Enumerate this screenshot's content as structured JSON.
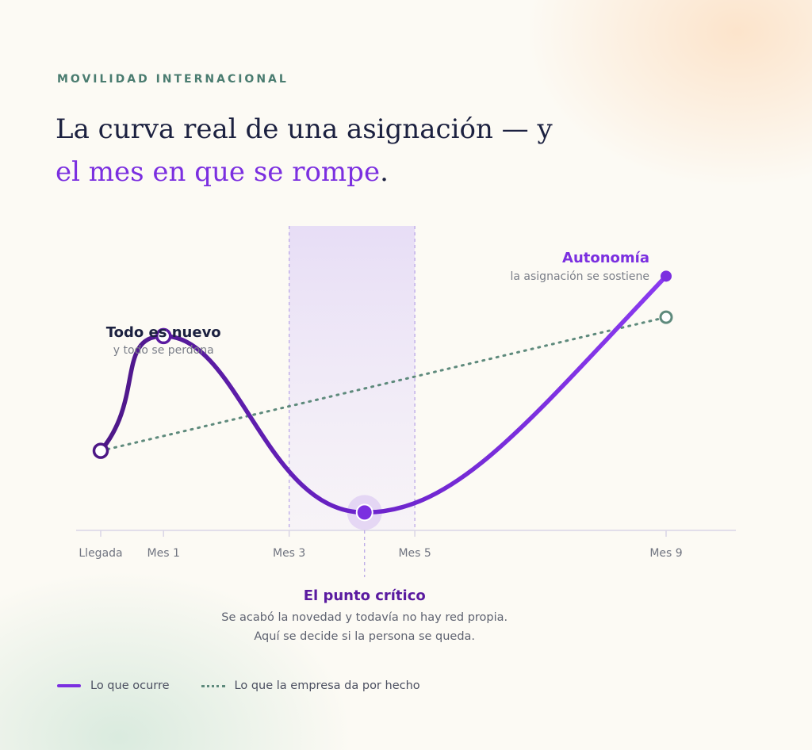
{
  "kicker": "MOVILIDAD INTERNACIONAL",
  "headline": {
    "line1": "La curva real de una asignación — y",
    "line2_accent": "el mes en que se rompe",
    "line2_end": "."
  },
  "colors": {
    "actual": "#7b2fe0",
    "actual_dark": "#4d1786",
    "expected": "#5e8a7c",
    "critical_band": "#ece4f8",
    "axis": "#d9d5e6",
    "annotation_accent": "#7b2fe0",
    "annotation_dark": "#1c2140"
  },
  "chart_data": {
    "type": "line",
    "x_tick_labels": [
      {
        "x": 0,
        "label": "Llegada"
      },
      {
        "x": 1,
        "label": "Mes 1"
      },
      {
        "x": 3,
        "label": "Mes 3"
      },
      {
        "x": 5,
        "label": "Mes 5"
      },
      {
        "x": 9,
        "label": "Mes 9"
      }
    ],
    "y_axis_labeled": false,
    "x_range": [
      -0.2,
      9.6
    ],
    "y_range": [
      0,
      110
    ],
    "critical_band": {
      "from": 3,
      "to": 5
    },
    "series": [
      {
        "name": "Lo que ocurre",
        "style": "solid",
        "points": [
          {
            "x": 0,
            "y": 46
          },
          {
            "x": 1,
            "y": 113
          },
          {
            "x": 4.2,
            "y": 10
          },
          {
            "x": 9,
            "y": 148
          }
        ]
      },
      {
        "name": "Lo que la empresa da por hecho",
        "style": "dotted",
        "points": [
          {
            "x": 0,
            "y": 46
          },
          {
            "x": 9,
            "y": 124
          }
        ]
      }
    ],
    "annotations": [
      {
        "title": "Todo es nuevo",
        "subtitle": "y todo se perdona",
        "x": 1
      },
      {
        "title": "Autonomía",
        "subtitle": "la asignación se sostiene",
        "x": 9
      },
      {
        "title": "El punto crítico",
        "lines": [
          "Se acabó la novedad y todavía no hay red propia.",
          "Aquí se decide si la persona se queda."
        ],
        "x": 4.2
      }
    ]
  },
  "legend": {
    "actual_label": "Lo que ocurre",
    "expected_label": "Lo que la empresa da por hecho"
  }
}
